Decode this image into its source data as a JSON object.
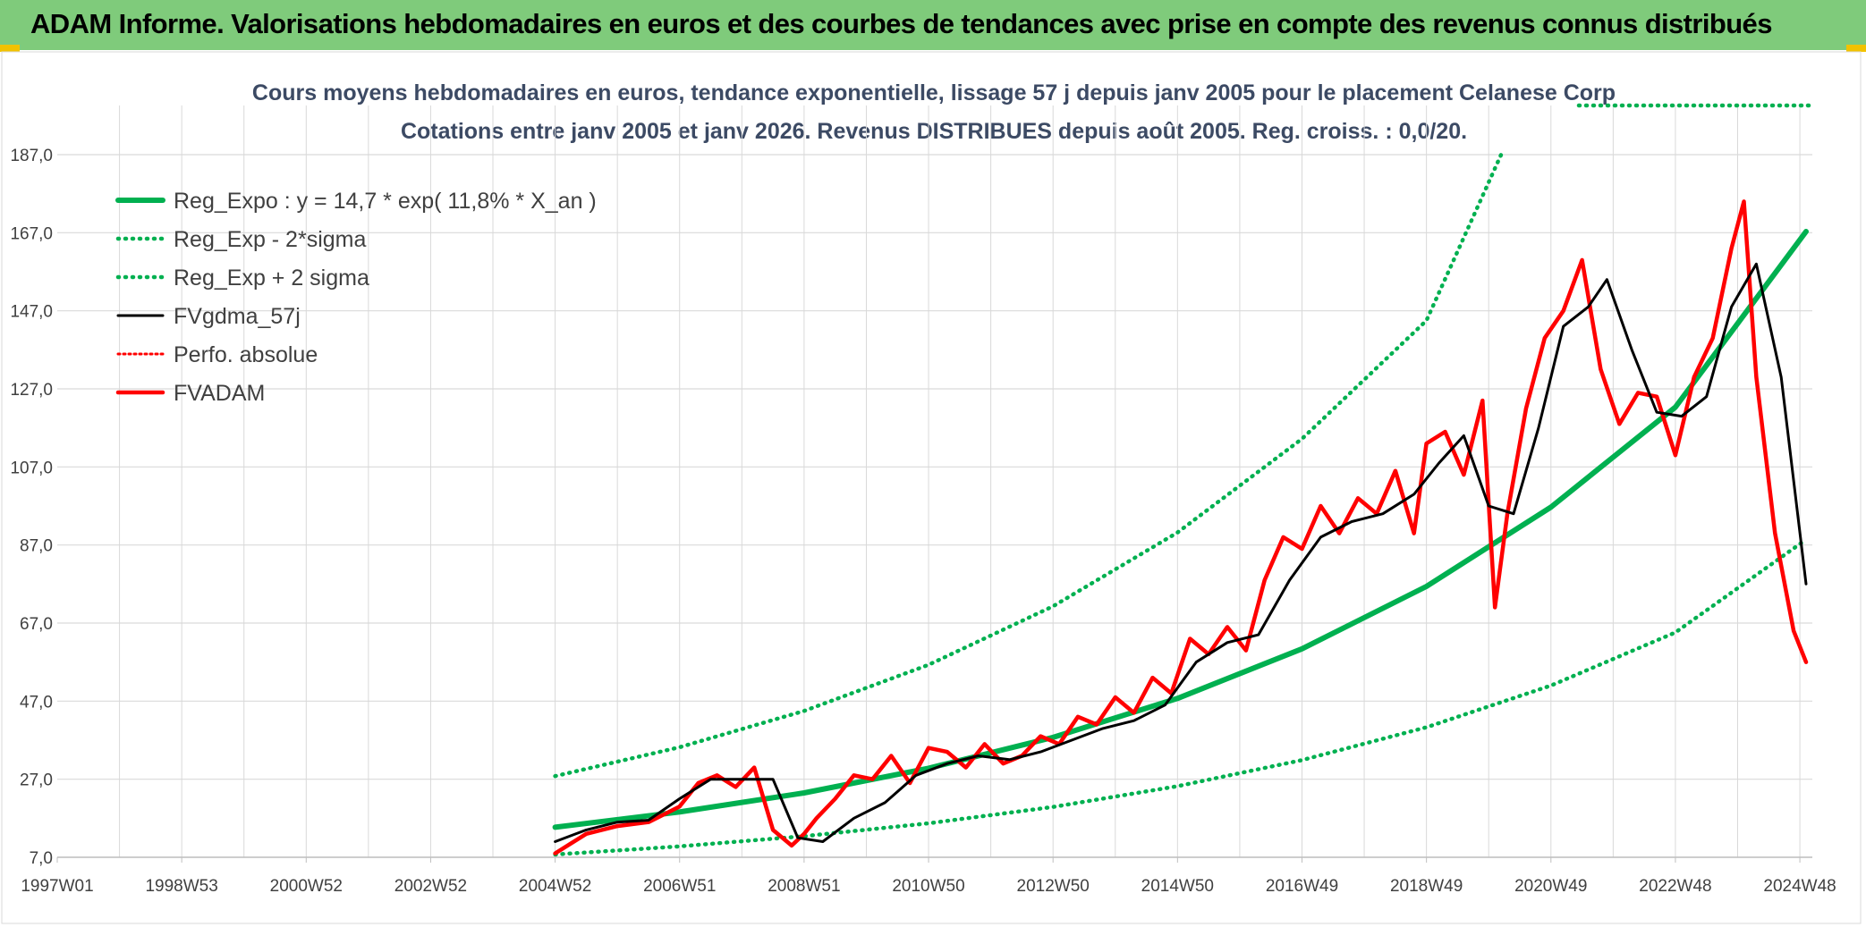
{
  "banner": {
    "title": "ADAM Informe. Valorisations hebdomadaires en euros et des courbes de tendances avec prise en compte des revenus connus distribués"
  },
  "colors": {
    "banner_bg": "#7fcb7b",
    "reg_expo": "#00b050",
    "fvgdma": "#000000",
    "fvadam": "#ff0000",
    "title": "#3c4a64"
  },
  "chart_data": {
    "type": "line",
    "title": "Cours moyens hebdomadaires en euros, tendance exponentielle, lissage 57 j depuis janv 2005 pour le placement Celanese Corp",
    "subtitle": "Cotations entre janv 2005 et janv 2026. Revenus DISTRIBUES depuis août 2005. Reg. croiss. : 0,0/20.",
    "x_ticks": [
      "1997W01",
      "1998W53",
      "2000W52",
      "2002W52",
      "2004W52",
      "2006W51",
      "2008W51",
      "2010W50",
      "2012W50",
      "2014W50",
      "2016W49",
      "2018W49",
      "2020W49",
      "2022W48",
      "2024W48"
    ],
    "y_ticks": [
      "7,0",
      "27,0",
      "47,0",
      "67,0",
      "87,0",
      "107,0",
      "127,0",
      "147,0",
      "167,0",
      "187,0"
    ],
    "ylim": [
      7,
      187
    ],
    "grid": true,
    "legend_position": "top-left",
    "series": [
      {
        "name": "Reg_Expo : y = 14,7 * exp( 11,8% *  X_an )",
        "style": "solid",
        "color": "#00b050",
        "x": [
          2005,
          2007,
          2009,
          2011,
          2013,
          2015,
          2017,
          2019,
          2021,
          2023,
          2025.1
        ],
        "y": [
          14.7,
          18.6,
          23.5,
          29.8,
          37.7,
          47.7,
          60.4,
          76.4,
          96.7,
          122.3,
          167.3
        ]
      },
      {
        "name": "Reg_Exp - 2*sigma",
        "style": "dotted",
        "color": "#00b050",
        "x": [
          2005,
          2007,
          2009,
          2011,
          2013,
          2015,
          2017,
          2019,
          2021,
          2023,
          2025.1
        ],
        "y": [
          7.7,
          9.8,
          12.4,
          15.7,
          19.9,
          25.2,
          31.9,
          40.3,
          51.0,
          64.6,
          88.4
        ]
      },
      {
        "name": "Reg_Exp + 2 sigma",
        "style": "dotted",
        "color": "#00b050",
        "x": [
          2005,
          2007,
          2009,
          2011,
          2013,
          2015,
          2017,
          2019,
          2020.2
        ],
        "y": [
          27.8,
          35.2,
          44.5,
          56.3,
          71.3,
          90.2,
          114.2,
          144.5,
          187.0
        ]
      },
      {
        "name": "FVgdma_57j",
        "style": "solid",
        "color": "#000000",
        "x": [
          2005.0,
          2005.5,
          2006.0,
          2006.5,
          2007.0,
          2007.5,
          2008.0,
          2008.5,
          2008.9,
          2009.3,
          2009.8,
          2010.3,
          2010.8,
          2011.3,
          2011.8,
          2012.3,
          2012.8,
          2013.3,
          2013.8,
          2014.3,
          2014.8,
          2015.3,
          2015.8,
          2016.3,
          2016.8,
          2017.3,
          2017.8,
          2018.3,
          2018.8,
          2019.2,
          2019.6,
          2020.0,
          2020.4,
          2020.8,
          2021.2,
          2021.6,
          2021.9,
          2022.3,
          2022.7,
          2023.1,
          2023.5,
          2023.9,
          2024.3,
          2024.7,
          2025.1
        ],
        "y": [
          11,
          14,
          16,
          16.5,
          22,
          27,
          27,
          27,
          12,
          11,
          17,
          21,
          28,
          31,
          33,
          32,
          34,
          37,
          40,
          42,
          46,
          57,
          62,
          64,
          78,
          89,
          93,
          95,
          100,
          108,
          115,
          97,
          95,
          117,
          143,
          148,
          155,
          137,
          121,
          120,
          125,
          148,
          159,
          130,
          77
        ]
      },
      {
        "name": "Perfo. absolue",
        "style": "dotted",
        "color": "#ff0000",
        "x": [],
        "y": []
      },
      {
        "name": "FVADAM",
        "style": "solid",
        "color": "#ff0000",
        "x": [
          2005.0,
          2005.5,
          2006.0,
          2006.5,
          2007.0,
          2007.3,
          2007.6,
          2007.9,
          2008.2,
          2008.5,
          2008.8,
          2009.0,
          2009.2,
          2009.5,
          2009.8,
          2010.1,
          2010.4,
          2010.7,
          2011.0,
          2011.3,
          2011.6,
          2011.9,
          2012.2,
          2012.5,
          2012.8,
          2013.1,
          2013.4,
          2013.7,
          2014.0,
          2014.3,
          2014.6,
          2014.9,
          2015.2,
          2015.5,
          2015.8,
          2016.1,
          2016.4,
          2016.7,
          2017.0,
          2017.3,
          2017.6,
          2017.9,
          2018.2,
          2018.5,
          2018.8,
          2019.0,
          2019.3,
          2019.6,
          2019.9,
          2020.1,
          2020.3,
          2020.6,
          2020.9,
          2021.2,
          2021.5,
          2021.8,
          2022.1,
          2022.4,
          2022.7,
          2023.0,
          2023.3,
          2023.6,
          2023.9,
          2024.1,
          2024.3,
          2024.6,
          2024.9,
          2025.1
        ],
        "y": [
          8,
          13,
          15,
          16,
          20,
          26,
          28,
          25,
          30,
          14,
          10,
          13,
          17,
          22,
          28,
          27,
          33,
          26,
          35,
          34,
          30,
          36,
          31,
          33,
          38,
          36,
          43,
          41,
          48,
          44,
          53,
          49,
          63,
          59,
          66,
          60,
          78,
          89,
          86,
          97,
          90,
          99,
          95,
          106,
          90,
          113,
          116,
          105,
          124,
          71,
          95,
          122,
          140,
          147,
          160,
          132,
          118,
          126,
          125,
          110,
          130,
          140,
          163,
          175,
          130,
          90,
          65,
          57
        ]
      }
    ]
  },
  "legend": {
    "items": [
      "Reg_Expo : y = 14,7 * exp( 11,8% *  X_an )",
      "Reg_Exp - 2*sigma",
      "Reg_Exp + 2 sigma",
      "FVgdma_57j",
      "Perfo. absolue",
      "FVADAM"
    ]
  }
}
